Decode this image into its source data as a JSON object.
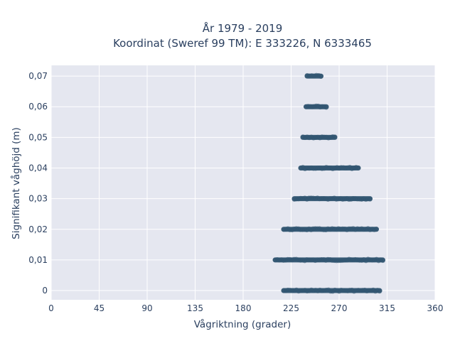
{
  "chart_data": {
    "type": "scatter",
    "title": "År 1979 - 2019",
    "subtitle": "Koordinat (Sweref 99 TM): E 333226, N 6333465",
    "xlabel": "Vågriktning (grader)",
    "ylabel": "Signifikant våghöjd (m)",
    "xlim": [
      0,
      360
    ],
    "ylim": [
      -0.003,
      0.0735
    ],
    "xticks": [
      0,
      45,
      90,
      135,
      180,
      225,
      270,
      315,
      360
    ],
    "yticks": [
      0,
      0.01,
      0.02,
      0.03,
      0.04,
      0.05,
      0.06,
      0.07
    ],
    "ytick_labels": [
      "0",
      "0,01",
      "0,02",
      "0,03",
      "0,04",
      "0,05",
      "0,06",
      "0,07"
    ],
    "grid": true,
    "marker_color": "#2f5470",
    "plot_background": "#e5e7f0",
    "series": [
      {
        "points_summary": "Points lie on discrete height levels; each level spans the direction range given.",
        "levels": [
          {
            "y": 0.0,
            "x_min": 218,
            "x_max": 308
          },
          {
            "y": 0.01,
            "x_min": 210,
            "x_max": 311
          },
          {
            "y": 0.02,
            "x_min": 218,
            "x_max": 305
          },
          {
            "y": 0.03,
            "x_min": 228,
            "x_max": 299
          },
          {
            "y": 0.04,
            "x_min": 234,
            "x_max": 288
          },
          {
            "y": 0.05,
            "x_min": 236,
            "x_max": 266
          },
          {
            "y": 0.06,
            "x_min": 239,
            "x_max": 258
          },
          {
            "y": 0.07,
            "x_min": 240,
            "x_max": 253
          }
        ]
      }
    ]
  }
}
